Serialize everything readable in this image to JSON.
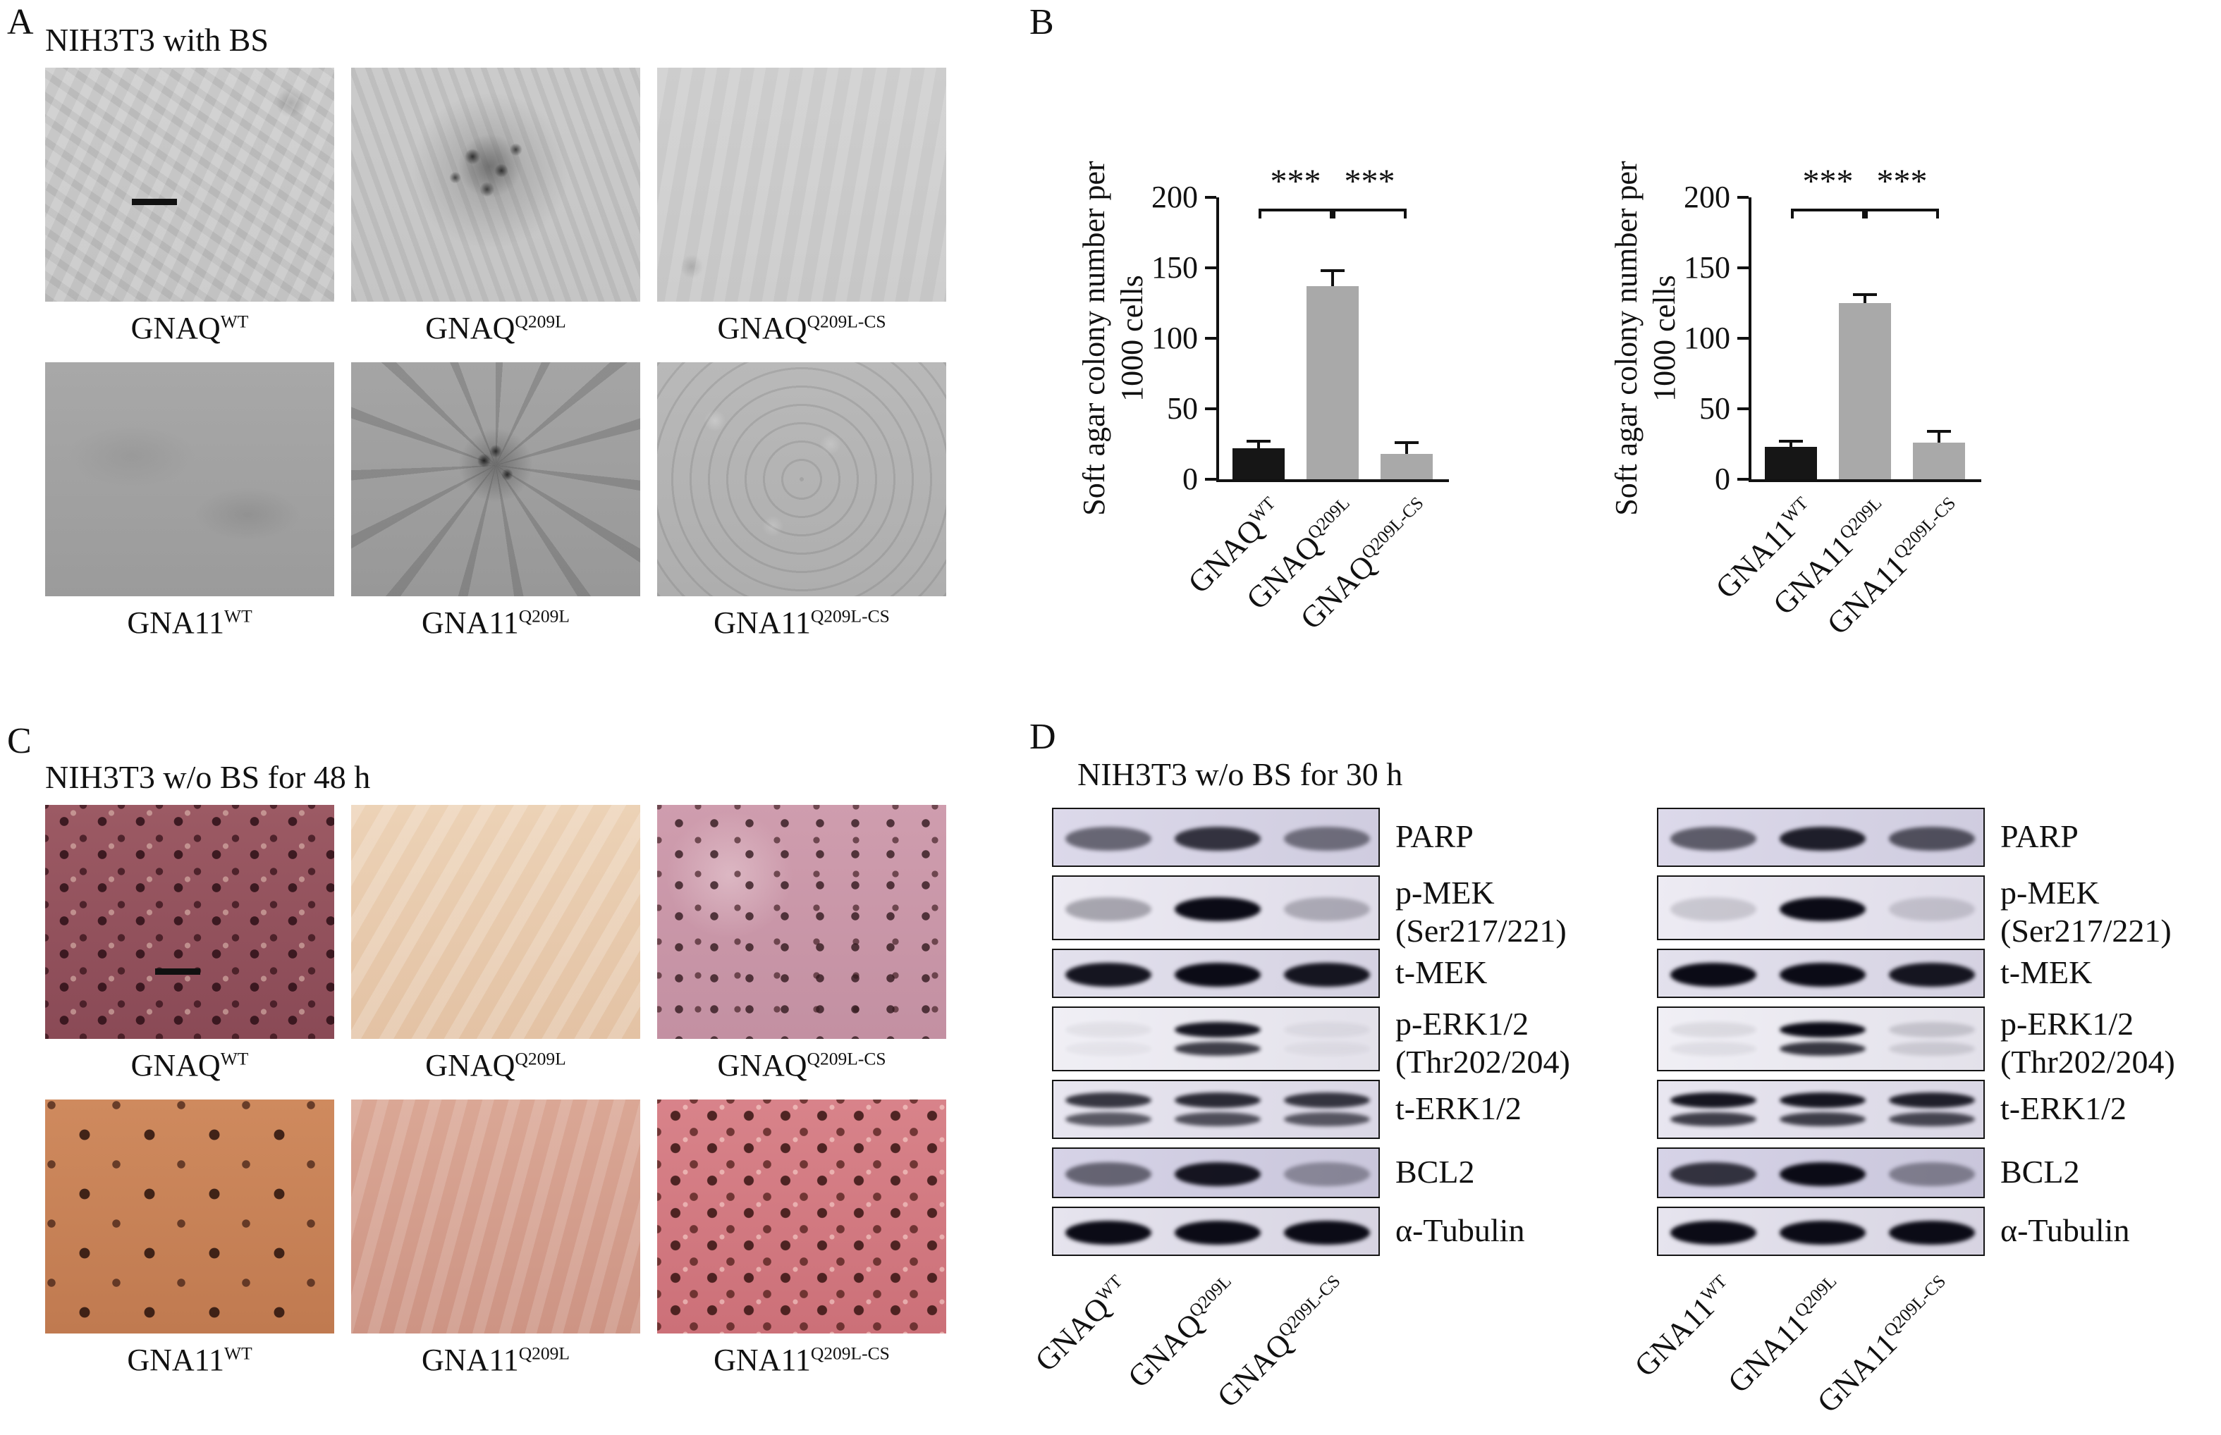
{
  "panelA": {
    "label": "A",
    "title": "NIH3T3 with BS",
    "captions": [
      {
        "base": "GNAQ",
        "sup": "WT"
      },
      {
        "base": "GNAQ",
        "sup": "Q209L"
      },
      {
        "base": "GNAQ",
        "sup": "Q209L-CS"
      },
      {
        "base": "GNA11",
        "sup": "WT"
      },
      {
        "base": "GNA11",
        "sup": "Q209L"
      },
      {
        "base": "GNA11",
        "sup": "Q209L-CS"
      }
    ]
  },
  "panelB": {
    "label": "B"
  },
  "panelC": {
    "label": "C",
    "title": "NIH3T3 w/o BS for 48 h",
    "captions": [
      {
        "base": "GNAQ",
        "sup": "WT"
      },
      {
        "base": "GNAQ",
        "sup": "Q209L"
      },
      {
        "base": "GNAQ",
        "sup": "Q209L-CS"
      },
      {
        "base": "GNA11",
        "sup": "WT"
      },
      {
        "base": "GNA11",
        "sup": "Q209L"
      },
      {
        "base": "GNA11",
        "sup": "Q209L-CS"
      }
    ]
  },
  "panelD": {
    "label": "D",
    "title": "NIH3T3 w/o BS for 30 h",
    "blot_sets": [
      {
        "name": "GNAQ",
        "lane_labels": [
          {
            "base": "GNAQ",
            "sup": "WT"
          },
          {
            "base": "GNAQ",
            "sup": "Q209L"
          },
          {
            "base": "GNAQ",
            "sup": "Q209L-CS"
          }
        ],
        "rows": [
          {
            "label": "PARP",
            "sublabel": "",
            "double": false,
            "lanes": [
              0.55,
              0.8,
              0.5
            ]
          },
          {
            "label": "p-MEK",
            "sublabel": "(Ser217/221)",
            "double": false,
            "lanes": [
              0.3,
              1.0,
              0.25
            ]
          },
          {
            "label": "t-MEK",
            "sublabel": "",
            "double": false,
            "lanes": [
              0.95,
              1.0,
              0.95
            ]
          },
          {
            "label": "p-ERK1/2",
            "sublabel": "(Thr202/204)",
            "double": true,
            "lanes": [
              0.05,
              0.95,
              0.05
            ]
          },
          {
            "label": "t-ERK1/2",
            "sublabel": "",
            "double": true,
            "lanes": [
              0.8,
              0.85,
              0.8
            ]
          },
          {
            "label": "BCL2",
            "sublabel": "",
            "double": false,
            "lanes": [
              0.55,
              0.95,
              0.35
            ]
          },
          {
            "label": "α-Tubulin",
            "sublabel": "",
            "double": false,
            "lanes": [
              1.0,
              1.0,
              1.0
            ]
          }
        ]
      },
      {
        "name": "GNA11",
        "lane_labels": [
          {
            "base": "GNA11",
            "sup": "WT"
          },
          {
            "base": "GNA11",
            "sup": "Q209L"
          },
          {
            "base": "GNA11",
            "sup": "Q209L-CS"
          }
        ],
        "rows": [
          {
            "label": "PARP",
            "sublabel": "",
            "double": false,
            "lanes": [
              0.6,
              0.9,
              0.65
            ]
          },
          {
            "label": "p-MEK",
            "sublabel": "(Ser217/221)",
            "double": false,
            "lanes": [
              0.15,
              1.0,
              0.15
            ]
          },
          {
            "label": "t-MEK",
            "sublabel": "",
            "double": false,
            "lanes": [
              1.0,
              1.0,
              0.95
            ]
          },
          {
            "label": "p-ERK1/2",
            "sublabel": "(Thr202/204)",
            "double": true,
            "lanes": [
              0.08,
              1.0,
              0.15
            ]
          },
          {
            "label": "t-ERK1/2",
            "sublabel": "",
            "double": true,
            "lanes": [
              0.95,
              0.95,
              0.9
            ]
          },
          {
            "label": "BCL2",
            "sublabel": "",
            "double": false,
            "lanes": [
              0.8,
              1.0,
              0.4
            ]
          },
          {
            "label": "α-Tubulin",
            "sublabel": "",
            "double": false,
            "lanes": [
              1.0,
              1.0,
              1.0
            ]
          }
        ]
      }
    ]
  },
  "chart_data": [
    {
      "type": "bar",
      "categories": [
        {
          "base": "GNAQ",
          "sup": "WT"
        },
        {
          "base": "GNAQ",
          "sup": "Q209L"
        },
        {
          "base": "GNAQ",
          "sup": "Q209L-CS"
        }
      ],
      "values": [
        22,
        137,
        18
      ],
      "errors": [
        5,
        11,
        8
      ],
      "title": "",
      "xlabel": "",
      "ylabel": "Soft agar colony number per 1000 cells",
      "ylabel_line1": "Soft agar colony number per",
      "ylabel_line2": "1000 cells",
      "ylim": [
        0,
        200
      ],
      "yticks": [
        0,
        50,
        100,
        150,
        200
      ],
      "grid": false,
      "legend": "none",
      "bar_colors": [
        "#161616",
        "#a9a9a9",
        "#a9a9a9"
      ],
      "significance": [
        {
          "from": 0,
          "to": 1,
          "label": "***"
        },
        {
          "from": 1,
          "to": 2,
          "label": "***"
        }
      ]
    },
    {
      "type": "bar",
      "categories": [
        {
          "base": "GNA11",
          "sup": "WT"
        },
        {
          "base": "GNA11",
          "sup": "Q209L"
        },
        {
          "base": "GNA11",
          "sup": "Q209L-CS"
        }
      ],
      "values": [
        23,
        125,
        26
      ],
      "errors": [
        4,
        6,
        8
      ],
      "title": "",
      "xlabel": "",
      "ylabel": "Soft agar colony number per 1000 cells",
      "ylabel_line1": "Soft agar colony number per",
      "ylabel_line2": "1000 cells",
      "ylim": [
        0,
        200
      ],
      "yticks": [
        0,
        50,
        100,
        150,
        200
      ],
      "grid": false,
      "legend": "none",
      "bar_colors": [
        "#161616",
        "#a9a9a9",
        "#a9a9a9"
      ],
      "significance": [
        {
          "from": 0,
          "to": 1,
          "label": "***"
        },
        {
          "from": 1,
          "to": 2,
          "label": "***"
        }
      ]
    }
  ]
}
